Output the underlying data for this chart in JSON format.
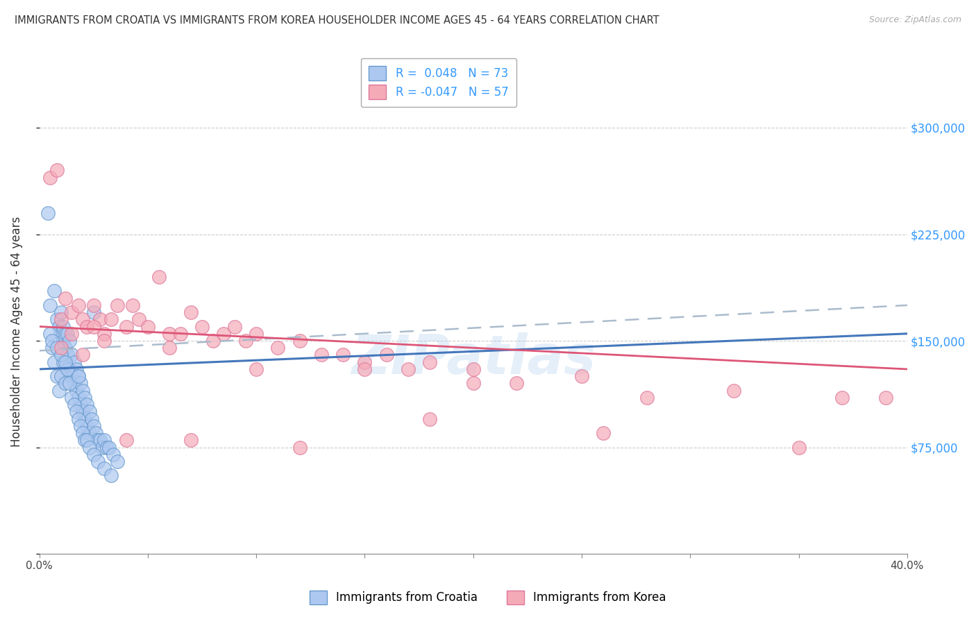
{
  "title": "IMMIGRANTS FROM CROATIA VS IMMIGRANTS FROM KOREA HOUSEHOLDER INCOME AGES 45 - 64 YEARS CORRELATION CHART",
  "source": "Source: ZipAtlas.com",
  "ylabel": "Householder Income Ages 45 - 64 years",
  "xlim": [
    0.0,
    0.4
  ],
  "ylim": [
    0,
    312500
  ],
  "xticks": [
    0.0,
    0.05,
    0.1,
    0.15,
    0.2,
    0.25,
    0.3,
    0.35,
    0.4
  ],
  "xticklabels": [
    "0.0%",
    "",
    "",
    "",
    "",
    "",
    "",
    "",
    "40.0%"
  ],
  "yticks": [
    0,
    75000,
    150000,
    225000,
    300000
  ],
  "yticklabels": [
    "",
    "$75,000",
    "$150,000",
    "$225,000",
    "$300,000"
  ],
  "croatia_color": "#adc8f0",
  "croatia_edge": "#6699cc",
  "korea_color": "#f5aab8",
  "korea_edge": "#dd7799",
  "trend_croatia_color": "#4477bb",
  "trend_korea_color": "#dd5577",
  "r_croatia": 0.048,
  "n_croatia": 73,
  "r_korea": -0.047,
  "n_korea": 57,
  "watermark": "ZIPatlas",
  "croatia_x": [
    0.005,
    0.007,
    0.008,
    0.009,
    0.01,
    0.01,
    0.011,
    0.011,
    0.012,
    0.012,
    0.013,
    0.013,
    0.014,
    0.014,
    0.015,
    0.015,
    0.016,
    0.016,
    0.017,
    0.017,
    0.018,
    0.018,
    0.019,
    0.019,
    0.02,
    0.02,
    0.021,
    0.021,
    0.022,
    0.022,
    0.023,
    0.023,
    0.024,
    0.025,
    0.026,
    0.027,
    0.028,
    0.029,
    0.03,
    0.031,
    0.032,
    0.034,
    0.036,
    0.005,
    0.006,
    0.007,
    0.008,
    0.009,
    0.01,
    0.011,
    0.012,
    0.013,
    0.014,
    0.015,
    0.016,
    0.017,
    0.018,
    0.019,
    0.02,
    0.021,
    0.022,
    0.023,
    0.025,
    0.027,
    0.03,
    0.033,
    0.004,
    0.006,
    0.008,
    0.01,
    0.012,
    0.018,
    0.025
  ],
  "croatia_y": [
    175000,
    185000,
    165000,
    160000,
    170000,
    155000,
    160000,
    150000,
    155000,
    145000,
    155000,
    140000,
    150000,
    130000,
    140000,
    125000,
    135000,
    120000,
    130000,
    115000,
    125000,
    110000,
    120000,
    105000,
    115000,
    100000,
    110000,
    95000,
    105000,
    90000,
    100000,
    85000,
    95000,
    90000,
    85000,
    80000,
    80000,
    75000,
    80000,
    75000,
    75000,
    70000,
    65000,
    155000,
    145000,
    135000,
    125000,
    115000,
    125000,
    135000,
    120000,
    130000,
    120000,
    110000,
    105000,
    100000,
    95000,
    90000,
    85000,
    80000,
    80000,
    75000,
    70000,
    65000,
    60000,
    55000,
    240000,
    150000,
    145000,
    140000,
    135000,
    125000,
    170000
  ],
  "korea_x": [
    0.005,
    0.008,
    0.01,
    0.012,
    0.015,
    0.018,
    0.02,
    0.022,
    0.025,
    0.028,
    0.03,
    0.033,
    0.036,
    0.04,
    0.043,
    0.046,
    0.05,
    0.055,
    0.06,
    0.065,
    0.07,
    0.075,
    0.08,
    0.085,
    0.09,
    0.095,
    0.1,
    0.11,
    0.12,
    0.13,
    0.14,
    0.15,
    0.16,
    0.17,
    0.18,
    0.2,
    0.22,
    0.25,
    0.28,
    0.32,
    0.37,
    0.01,
    0.02,
    0.03,
    0.06,
    0.1,
    0.15,
    0.2,
    0.04,
    0.07,
    0.12,
    0.18,
    0.26,
    0.35,
    0.39,
    0.015,
    0.025
  ],
  "korea_y": [
    265000,
    270000,
    165000,
    180000,
    170000,
    175000,
    165000,
    160000,
    175000,
    165000,
    155000,
    165000,
    175000,
    160000,
    175000,
    165000,
    160000,
    195000,
    155000,
    155000,
    170000,
    160000,
    150000,
    155000,
    160000,
    150000,
    155000,
    145000,
    150000,
    140000,
    140000,
    135000,
    140000,
    130000,
    135000,
    130000,
    120000,
    125000,
    110000,
    115000,
    110000,
    145000,
    140000,
    150000,
    145000,
    130000,
    130000,
    120000,
    80000,
    80000,
    75000,
    95000,
    85000,
    75000,
    110000,
    155000,
    160000
  ]
}
